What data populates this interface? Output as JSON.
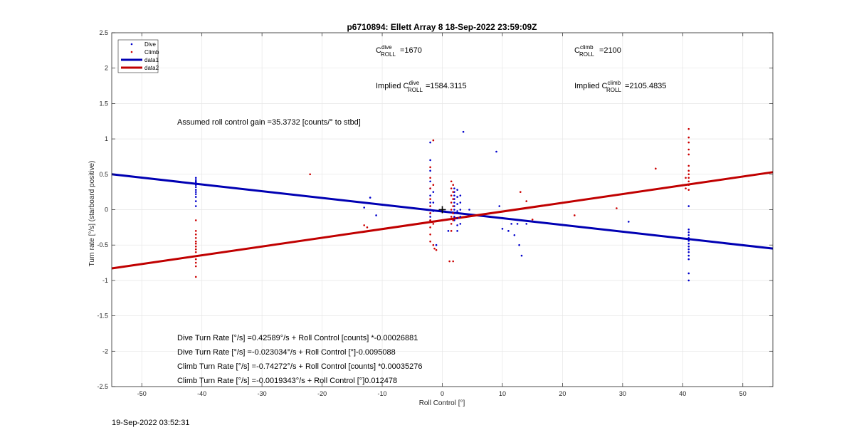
{
  "timestamp": "19-Sep-2022 03:52:31",
  "annotations": {
    "c_dive_base": "C",
    "c_dive_sup": "dive",
    "c_dive_sub": "ROLL",
    "c_dive_value": "=1670",
    "c_climb_base": "C",
    "c_climb_sup": "climb",
    "c_climb_sub": "ROLL",
    "c_climb_value": "=2100",
    "implied_dive_prefix": "Implied C",
    "implied_dive_sup": "dive",
    "implied_dive_sub": "ROLL",
    "implied_dive_value": "=1584.3115",
    "implied_climb_prefix": "Implied C",
    "implied_climb_sup": "climb",
    "implied_climb_sub": "ROLL",
    "implied_climb_value": "=2105.4835",
    "gain": "Assumed roll control gain =35.3732 [counts/° to stbd]",
    "eq1": "Dive Turn Rate [°/s] =0.42589°/s + Roll Control [counts] *-0.00026881",
    "eq2": "Dive Turn Rate [°/s] =-0.023034°/s + Roll Control [°]-0.0095088",
    "eq3": "Climb Turn Rate [°/s] =-0.74272°/s + Roll Control [counts] *0.00035276",
    "eq4": "Climb Turn Rate [°/s] =-0.0019343°/s + Roll Control [°]0.012478"
  },
  "chart_data": {
    "type": "scatter",
    "title": "p6710894: Ellett Array 8 18-Sep-2022 23:59:09Z",
    "xlabel": "Roll Control [°]",
    "ylabel": "Turn rate [°/s] (starboard positive)",
    "xlim": [
      -55,
      55
    ],
    "ylim": [
      -2.5,
      2.5
    ],
    "xticks": [
      -50,
      -40,
      -30,
      -20,
      -10,
      0,
      10,
      20,
      30,
      40,
      50
    ],
    "yticks": [
      -2.5,
      -2,
      -1.5,
      -1,
      -0.5,
      0,
      0.5,
      1,
      1.5,
      2,
      2.5
    ],
    "grid": true,
    "legend_position": "top-left",
    "colors": {
      "dive": "#0000cc",
      "climb": "#cc0000",
      "data1": "#0000b3",
      "data2": "#c00000"
    },
    "series": [
      {
        "name": "Dive",
        "kind": "points",
        "points": [
          [
            -41,
            0.45
          ],
          [
            -41,
            0.42
          ],
          [
            -41,
            0.4
          ],
          [
            -41,
            0.38
          ],
          [
            -41,
            0.35
          ],
          [
            -41,
            0.32
          ],
          [
            -41,
            0.28
          ],
          [
            -41,
            0.25
          ],
          [
            -41,
            0.22
          ],
          [
            -41,
            0.18
          ],
          [
            -41,
            0.12
          ],
          [
            -41,
            0.05
          ],
          [
            -13,
            0.03
          ],
          [
            -12,
            0.17
          ],
          [
            -11,
            -0.08
          ],
          [
            -2,
            0.95
          ],
          [
            -2,
            0.7
          ],
          [
            -2,
            0.55
          ],
          [
            -2,
            0.4
          ],
          [
            -2,
            0.3
          ],
          [
            -2,
            0.2
          ],
          [
            -2,
            0.1
          ],
          [
            -2,
            0.05
          ],
          [
            -2,
            0.0
          ],
          [
            -2,
            -0.05
          ],
          [
            -2,
            -0.1
          ],
          [
            -2,
            -0.15
          ],
          [
            -1.5,
            0.25
          ],
          [
            -1.5,
            0.1
          ],
          [
            -1.5,
            -0.02
          ],
          [
            2,
            0.3
          ],
          [
            2,
            0.25
          ],
          [
            2,
            0.2
          ],
          [
            2,
            0.15
          ],
          [
            2,
            0.1
          ],
          [
            2,
            0.05
          ],
          [
            2,
            0.0
          ],
          [
            2,
            -0.05
          ],
          [
            2,
            -0.1
          ],
          [
            2,
            -0.15
          ],
          [
            2.5,
            0.28
          ],
          [
            2.5,
            0.18
          ],
          [
            2.5,
            0.08
          ],
          [
            2.5,
            -0.02
          ],
          [
            2.5,
            -0.12
          ],
          [
            2.5,
            -0.22
          ],
          [
            2.5,
            -0.3
          ],
          [
            3,
            0.2
          ],
          [
            3,
            0.1
          ],
          [
            3,
            0.0
          ],
          [
            3,
            -0.1
          ],
          [
            3,
            -0.2
          ],
          [
            -1,
            -0.5
          ],
          [
            1,
            -0.3
          ],
          [
            3.5,
            1.1
          ],
          [
            4.5,
            0.0
          ],
          [
            9,
            0.82
          ],
          [
            9.5,
            0.05
          ],
          [
            10,
            -0.27
          ],
          [
            11,
            -0.3
          ],
          [
            11.5,
            -0.2
          ],
          [
            12,
            -0.36
          ],
          [
            12.5,
            -0.2
          ],
          [
            12.8,
            -0.5
          ],
          [
            13.2,
            -0.65
          ],
          [
            14,
            -0.2
          ],
          [
            31,
            -0.17
          ],
          [
            41,
            0.05
          ],
          [
            41,
            -0.28
          ],
          [
            41,
            -0.32
          ],
          [
            41,
            -0.36
          ],
          [
            41,
            -0.4
          ],
          [
            41,
            -0.44
          ],
          [
            41,
            -0.48
          ],
          [
            41,
            -0.52
          ],
          [
            41,
            -0.56
          ],
          [
            41,
            -0.6
          ],
          [
            41,
            -0.65
          ],
          [
            41,
            -0.7
          ],
          [
            41,
            -0.9
          ],
          [
            41,
            -1.0
          ]
        ]
      },
      {
        "name": "Climb",
        "kind": "points",
        "points": [
          [
            -41,
            -0.15
          ],
          [
            -41,
            -0.3
          ],
          [
            -41,
            -0.35
          ],
          [
            -41,
            -0.4
          ],
          [
            -41,
            -0.45
          ],
          [
            -41,
            -0.48
          ],
          [
            -41,
            -0.52
          ],
          [
            -41,
            -0.56
          ],
          [
            -41,
            -0.6
          ],
          [
            -41,
            -0.7
          ],
          [
            -41,
            -0.75
          ],
          [
            -41,
            -0.8
          ],
          [
            -41,
            -0.95
          ],
          [
            -22,
            0.5
          ],
          [
            -13,
            -0.22
          ],
          [
            -12.5,
            -0.25
          ],
          [
            -2,
            0.6
          ],
          [
            -2,
            0.45
          ],
          [
            -2,
            0.3
          ],
          [
            -2,
            0.15
          ],
          [
            -2,
            0.05
          ],
          [
            -2,
            -0.05
          ],
          [
            -2,
            -0.15
          ],
          [
            -2,
            -0.25
          ],
          [
            -2,
            -0.35
          ],
          [
            -2,
            -0.45
          ],
          [
            -1.5,
            0.98
          ],
          [
            -1.5,
            0.35
          ],
          [
            -1.5,
            -0.2
          ],
          [
            -1.5,
            -0.5
          ],
          [
            -1.3,
            -0.55
          ],
          [
            -1,
            -0.57
          ],
          [
            1.5,
            0.4
          ],
          [
            1.5,
            0.3
          ],
          [
            1.5,
            0.2
          ],
          [
            1.5,
            0.1
          ],
          [
            1.5,
            0.0
          ],
          [
            1.5,
            -0.1
          ],
          [
            1.5,
            -0.2
          ],
          [
            1.5,
            -0.3
          ],
          [
            1.8,
            0.35
          ],
          [
            1.8,
            0.25
          ],
          [
            1.8,
            0.15
          ],
          [
            1.8,
            0.05
          ],
          [
            1.8,
            -0.05
          ],
          [
            1.8,
            -0.15
          ],
          [
            1.2,
            -0.73
          ],
          [
            1.8,
            -0.73
          ],
          [
            13,
            0.25
          ],
          [
            14,
            0.12
          ],
          [
            15,
            -0.14
          ],
          [
            22,
            -0.08
          ],
          [
            29,
            0.02
          ],
          [
            35.5,
            0.58
          ],
          [
            40.5,
            0.3
          ],
          [
            40.5,
            0.45
          ],
          [
            41,
            1.14
          ],
          [
            41,
            1.02
          ],
          [
            41,
            0.95
          ],
          [
            41,
            0.85
          ],
          [
            41,
            0.78
          ],
          [
            41,
            0.62
          ],
          [
            41,
            0.55
          ],
          [
            41,
            0.5
          ],
          [
            41,
            0.45
          ],
          [
            41,
            0.4
          ],
          [
            41,
            0.35
          ],
          [
            41,
            0.28
          ]
        ]
      },
      {
        "name": "data1",
        "kind": "line",
        "x": [
          -55,
          55
        ],
        "y": [
          0.5,
          -0.55
        ]
      },
      {
        "name": "data2",
        "kind": "line",
        "x": [
          -55,
          55
        ],
        "y": [
          -0.83,
          0.53
        ]
      }
    ],
    "marker": {
      "x": 0,
      "y": 0,
      "symbol": "+"
    }
  }
}
